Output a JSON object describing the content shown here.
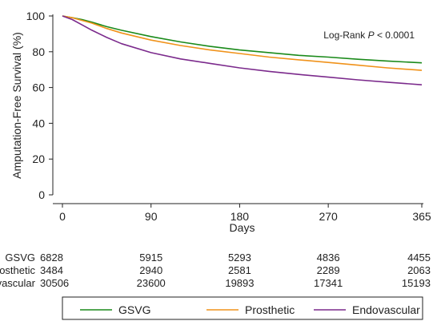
{
  "chart_data": {
    "type": "line",
    "title": "",
    "xlabel": "Days",
    "ylabel": "Amputation-Free Survival (%)",
    "xlim": [
      0,
      365
    ],
    "ylim": [
      0,
      100
    ],
    "xticks": [
      0,
      90,
      180,
      270,
      365
    ],
    "yticks": [
      0,
      20,
      40,
      60,
      80,
      100
    ],
    "grid": false,
    "annotation": {
      "prefix": "Log-Rank ",
      "italic": "P",
      "suffix": " < 0.0001",
      "placement": "top-right"
    },
    "series": [
      {
        "name": "GSVG",
        "color": "#1a8a1a",
        "x": [
          0,
          10,
          20,
          30,
          45,
          60,
          90,
          120,
          150,
          180,
          210,
          240,
          270,
          300,
          330,
          365
        ],
        "y": [
          100,
          99,
          98,
          96.5,
          94,
          92,
          88.5,
          85.5,
          83,
          81,
          79.5,
          78,
          77,
          75.8,
          74.8,
          73.8
        ]
      },
      {
        "name": "Prosthetic",
        "color": "#f0921a",
        "x": [
          0,
          10,
          20,
          30,
          45,
          60,
          90,
          120,
          150,
          180,
          210,
          240,
          270,
          300,
          330,
          365
        ],
        "y": [
          100,
          99,
          97.5,
          96,
          93,
          90.5,
          86.5,
          83.5,
          81,
          79,
          77,
          75.5,
          74,
          72.5,
          71,
          69.6
        ]
      },
      {
        "name": "Endovascular",
        "color": "#7b2a8c",
        "x": [
          0,
          10,
          20,
          30,
          45,
          60,
          90,
          120,
          150,
          180,
          210,
          240,
          270,
          300,
          330,
          365
        ],
        "y": [
          100,
          98,
          95,
          92,
          88,
          84.5,
          79.5,
          76,
          73.5,
          71,
          69,
          67.3,
          65.8,
          64.3,
          63,
          61.5
        ]
      }
    ],
    "risk_table": {
      "times": [
        0,
        90,
        180,
        270,
        365
      ],
      "rows": [
        {
          "label": "GSVG",
          "counts": [
            "6828",
            "5915",
            "5293",
            "4836",
            "4455"
          ]
        },
        {
          "label": "Prosthetic",
          "counts": [
            "3484",
            "2940",
            "2581",
            "2289",
            "2063"
          ]
        },
        {
          "label": "Endovascular",
          "counts": [
            "30506",
            "23600",
            "19893",
            "17341",
            "15193"
          ]
        }
      ]
    },
    "legend": {
      "placement": "bottom",
      "entries": [
        "GSVG",
        "Prosthetic",
        "Endovascular"
      ]
    }
  }
}
